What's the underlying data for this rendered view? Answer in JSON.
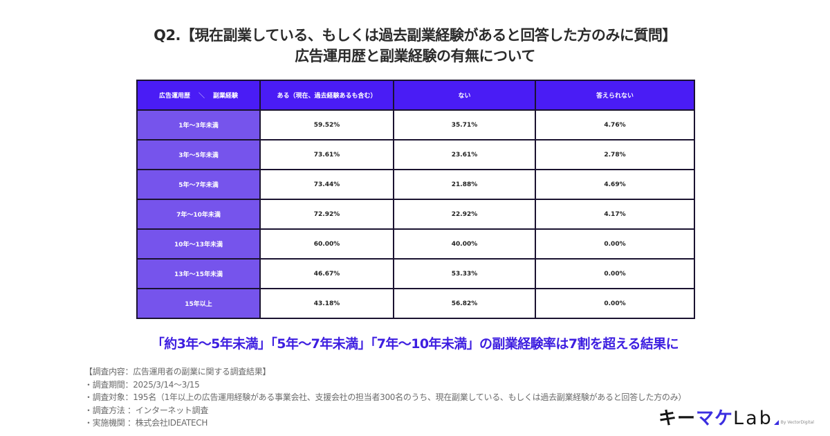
{
  "title": {
    "line1": "Q2.【現在副業している、もしくは過去副業経験があると回答した方のみに質問】",
    "line2": "広告運用歴と副業経験の有無について"
  },
  "table": {
    "header": {
      "corner_left": "広告運用歴",
      "corner_slash": "＼",
      "corner_right": "副業経験",
      "columns": [
        "ある（現在、過去経験あるも含む）",
        "ない",
        "答えられない"
      ]
    },
    "rows": [
      {
        "label": "1年〜3年未満",
        "values": [
          "59.52%",
          "35.71%",
          "4.76%"
        ]
      },
      {
        "label": "3年〜5年未満",
        "values": [
          "73.61%",
          "23.61%",
          "2.78%"
        ]
      },
      {
        "label": "5年〜7年未満",
        "values": [
          "73.44%",
          "21.88%",
          "4.69%"
        ]
      },
      {
        "label": "7年〜10年未満",
        "values": [
          "72.92%",
          "22.92%",
          "4.17%"
        ]
      },
      {
        "label": "10年〜13年未満",
        "values": [
          "60.00%",
          "40.00%",
          "0.00%"
        ]
      },
      {
        "label": "13年〜15年未満",
        "values": [
          "46.67%",
          "53.33%",
          "0.00%"
        ]
      },
      {
        "label": "15年以上",
        "values": [
          "43.18%",
          "56.82%",
          "0.00%"
        ]
      }
    ]
  },
  "summary": "「約3年〜5年未満」「5年〜7年未満」「7年〜10年未満」の副業経験率は7割を超える結果に",
  "notes": [
    "【調査内容：広告運用者の副業に関する調査結果】",
    "・調査期間：2025/3/14〜3/15",
    "・調査対象：195名（1年以上の広告運用経験がある事業会社、支援会社の担当者300名のうち、現在副業している、もしくは過去副業経験があると回答した方のみ）",
    "・調査方法 ：インターネット調査",
    "・実施機関 ：株式会社IDEATECH"
  ],
  "logo": {
    "part1": "キー",
    "part2": "マケ",
    "part3": "Lab",
    "byline": "By VectorDigital"
  },
  "colors": {
    "header_bg": "#4a1cf5",
    "row_label_bg": "#7654ec",
    "summary_text": "#3d1ee0"
  }
}
